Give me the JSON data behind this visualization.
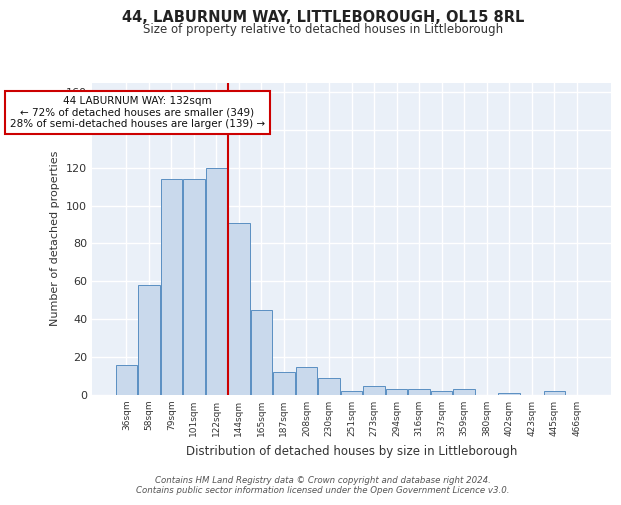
{
  "title": "44, LABURNUM WAY, LITTLEBOROUGH, OL15 8RL",
  "subtitle": "Size of property relative to detached houses in Littleborough",
  "xlabel": "Distribution of detached houses by size in Littleborough",
  "ylabel": "Number of detached properties",
  "categories": [
    "36sqm",
    "58sqm",
    "79sqm",
    "101sqm",
    "122sqm",
    "144sqm",
    "165sqm",
    "187sqm",
    "208sqm",
    "230sqm",
    "251sqm",
    "273sqm",
    "294sqm",
    "316sqm",
    "337sqm",
    "359sqm",
    "380sqm",
    "402sqm",
    "423sqm",
    "445sqm",
    "466sqm"
  ],
  "values": [
    16,
    58,
    114,
    114,
    120,
    91,
    45,
    12,
    15,
    9,
    2,
    5,
    3,
    3,
    2,
    3,
    0,
    1,
    0,
    2,
    0
  ],
  "bar_color": "#c9d9ec",
  "bar_edge_color": "#5a8fc2",
  "vline_x": 4.5,
  "vline_color": "#cc0000",
  "annotation_line1": "44 LABURNUM WAY: 132sqm",
  "annotation_line2": "← 72% of detached houses are smaller (349)",
  "annotation_line3": "28% of semi-detached houses are larger (139) →",
  "annotation_box_edge_color": "#cc0000",
  "ylim": [
    0,
    165
  ],
  "yticks": [
    0,
    20,
    40,
    60,
    80,
    100,
    120,
    140,
    160
  ],
  "footer": "Contains HM Land Registry data © Crown copyright and database right 2024.\nContains public sector information licensed under the Open Government Licence v3.0.",
  "plot_bg_color": "#eaf0f8"
}
